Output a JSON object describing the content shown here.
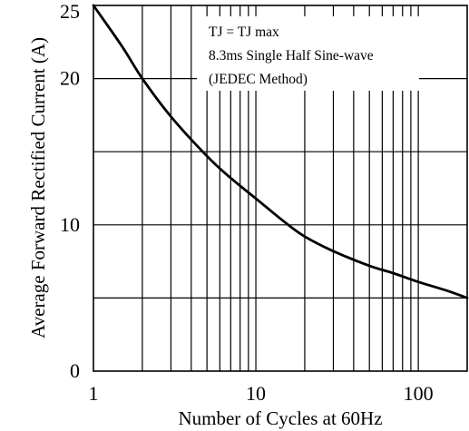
{
  "chart_data": {
    "type": "line",
    "title": "",
    "xlabel": "Number of Cycles at 60Hz",
    "ylabel": "Average Forward Rectified Current (A)",
    "x_scale": "log",
    "xlim": [
      1,
      200
    ],
    "ylim": [
      0,
      25
    ],
    "x_ticks": [
      1,
      10,
      100
    ],
    "x_tick_labels": [
      "1",
      "10",
      "100"
    ],
    "y_ticks": [
      0,
      10,
      20,
      25
    ],
    "y_tick_labels": [
      "0",
      "10",
      "20",
      "25"
    ],
    "y_gridlines": [
      5,
      10,
      15,
      20
    ],
    "grid": true,
    "annotations": [
      "TJ = TJ max",
      "8.3ms Single Half Sine-wave",
      "(JEDEC Method)"
    ],
    "series": [
      {
        "x": [
          1,
          1.5,
          2,
          3,
          5,
          7,
          10,
          15,
          20,
          30,
          50,
          70,
          100,
          150,
          200
        ],
        "y": [
          25,
          22.2,
          20,
          17.4,
          14.7,
          13.2,
          11.8,
          10.2,
          9.2,
          8.2,
          7.2,
          6.7,
          6.1,
          5.5,
          5
        ]
      }
    ]
  }
}
